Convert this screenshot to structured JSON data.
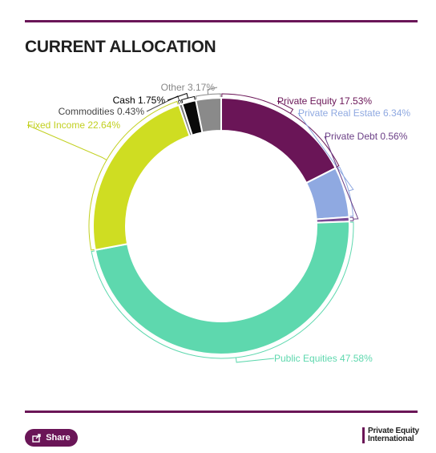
{
  "header": {
    "title": "CURRENT ALLOCATION"
  },
  "footer": {
    "share_label": "Share",
    "brand_line1": "Private Equity",
    "brand_line2": "International"
  },
  "colors": {
    "accent": "#6a1557"
  },
  "chart_data": {
    "type": "pie",
    "donut": true,
    "title": "CURRENT ALLOCATION",
    "categories": [
      "Private Equity",
      "Private Real Estate",
      "Private Debt",
      "Public Equities",
      "Fixed Income",
      "Commodities",
      "Cash",
      "Other"
    ],
    "values": [
      17.53,
      6.34,
      0.56,
      47.58,
      22.64,
      0.43,
      1.75,
      3.17
    ],
    "labels": [
      "Private Equity 17.53%",
      "Private Real Estate 6.34%",
      "Private Debt 0.56%",
      "Public Equities 47.58%",
      "Fixed Income 22.64%",
      "Commodities 0.43%",
      "Cash 1.75%",
      "Other 3.17%"
    ],
    "colors": [
      "#6a1557",
      "#8fa9e1",
      "#7a4a96",
      "#5ed8ae",
      "#cfdd22",
      "#7b7b7b",
      "#0a0a0a",
      "#8a8a8a"
    ],
    "label_colors": [
      "#6a1557",
      "#8fa9e1",
      "#6b3f86",
      "#5ed8ae",
      "#c2d020",
      "#444444",
      "#000000",
      "#888888"
    ],
    "legend": "none"
  }
}
